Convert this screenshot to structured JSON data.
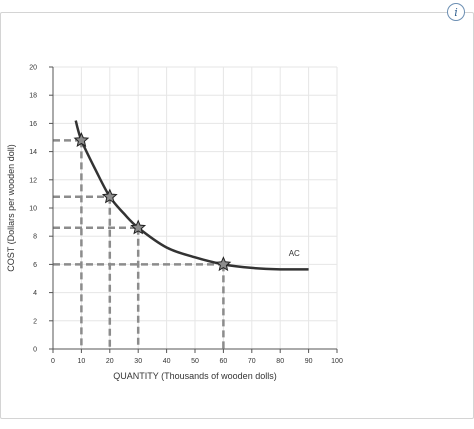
{
  "info_button": {
    "label": "i"
  },
  "chart_data": {
    "type": "line",
    "title": "",
    "xlabel": "QUANTITY (Thousands of wooden dolls)",
    "ylabel": "COST (Dollars per wooden doll)",
    "xlim": [
      0,
      100
    ],
    "ylim": [
      0,
      20
    ],
    "x_ticks": [
      "0",
      "10",
      "20",
      "30",
      "40",
      "50",
      "60",
      "70",
      "80",
      "90",
      "100"
    ],
    "y_ticks": [
      "0",
      "2",
      "4",
      "6",
      "8",
      "10",
      "12",
      "14",
      "16",
      "18",
      "20"
    ],
    "grid": true,
    "series": [
      {
        "name": "AC",
        "x": [
          8,
          10,
          15,
          20,
          25,
          30,
          40,
          50,
          60,
          70,
          80,
          90
        ],
        "y": [
          16.2,
          14.8,
          12.7,
          10.8,
          9.6,
          8.6,
          7.2,
          6.5,
          6.0,
          5.75,
          5.65,
          5.65
        ]
      }
    ],
    "marked_points": [
      {
        "x": 10,
        "y": 14.8
      },
      {
        "x": 20,
        "y": 10.8
      },
      {
        "x": 30,
        "y": 8.6
      },
      {
        "x": 60,
        "y": 6.0
      }
    ],
    "colors": {
      "curve": "#333333",
      "dashes": "#8c8c8c",
      "marker": "#8c8c8c",
      "grid": "#e6e6e6"
    }
  }
}
